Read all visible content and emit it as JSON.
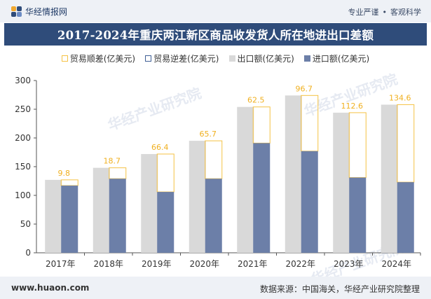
{
  "header": {
    "brand": "华经情报网",
    "tag1": "专业严谨",
    "tag2": "客观科学"
  },
  "title": "2017-2024年重庆两江新区商品收发货人所在地进出口差额",
  "colors": {
    "surplus": "#f5c244",
    "deficit": "#3f5f95",
    "export": "#d9d9d9",
    "import": "#6c7fa8",
    "titlebar": "#2f4c7a"
  },
  "footer": {
    "url": "www.huaon.com",
    "source": "数据来源：中国海关，华经产业研究院整理"
  },
  "watermark": "华经产业研究院",
  "chart_data": {
    "type": "bar",
    "categories": [
      "2017年",
      "2018年",
      "2019年",
      "2020年",
      "2021年",
      "2022年",
      "2023年",
      "2024年"
    ],
    "series": [
      {
        "name": "贸易顺差(亿美元)",
        "values": [
          9.8,
          18.7,
          66.4,
          65.7,
          62.5,
          96.7,
          112.6,
          134.6
        ]
      },
      {
        "name": "贸易逆差(亿美元)",
        "values": [
          0,
          0,
          0,
          0,
          0,
          0,
          0,
          0
        ]
      },
      {
        "name": "出口额(亿美元)",
        "values": [
          127,
          148,
          172,
          195,
          254,
          274,
          244,
          258
        ]
      },
      {
        "name": "进口额(亿美元)",
        "values": [
          117,
          129,
          106,
          129,
          191,
          177,
          131,
          123
        ]
      }
    ],
    "ylim": [
      0,
      300
    ],
    "yticks": [
      0,
      50,
      100,
      150,
      200,
      250,
      300
    ],
    "legend_position": "top",
    "grid": false
  }
}
